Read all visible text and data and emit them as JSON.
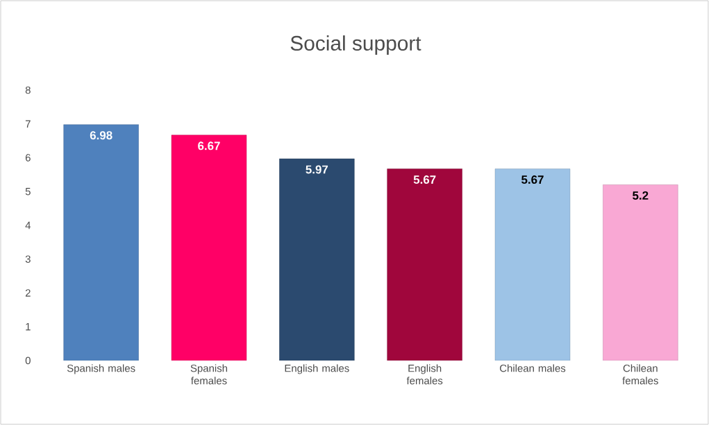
{
  "chart_data": {
    "type": "bar",
    "title": "Social support",
    "categories": [
      "Spanish males",
      "Spanish females",
      "English males",
      "English females",
      "Chilean males",
      "Chilean females"
    ],
    "values": [
      6.98,
      6.67,
      5.97,
      5.67,
      5.67,
      5.2
    ],
    "colors": [
      "#4f81bd",
      "#ff0066",
      "#2b4a6f",
      "#a0063c",
      "#9dc3e6",
      "#f9a8d4"
    ],
    "ylim": [
      0,
      8
    ],
    "yticks": [
      0,
      1,
      2,
      3,
      4,
      5,
      6,
      7,
      8
    ],
    "data_labels": true,
    "grid": false
  }
}
